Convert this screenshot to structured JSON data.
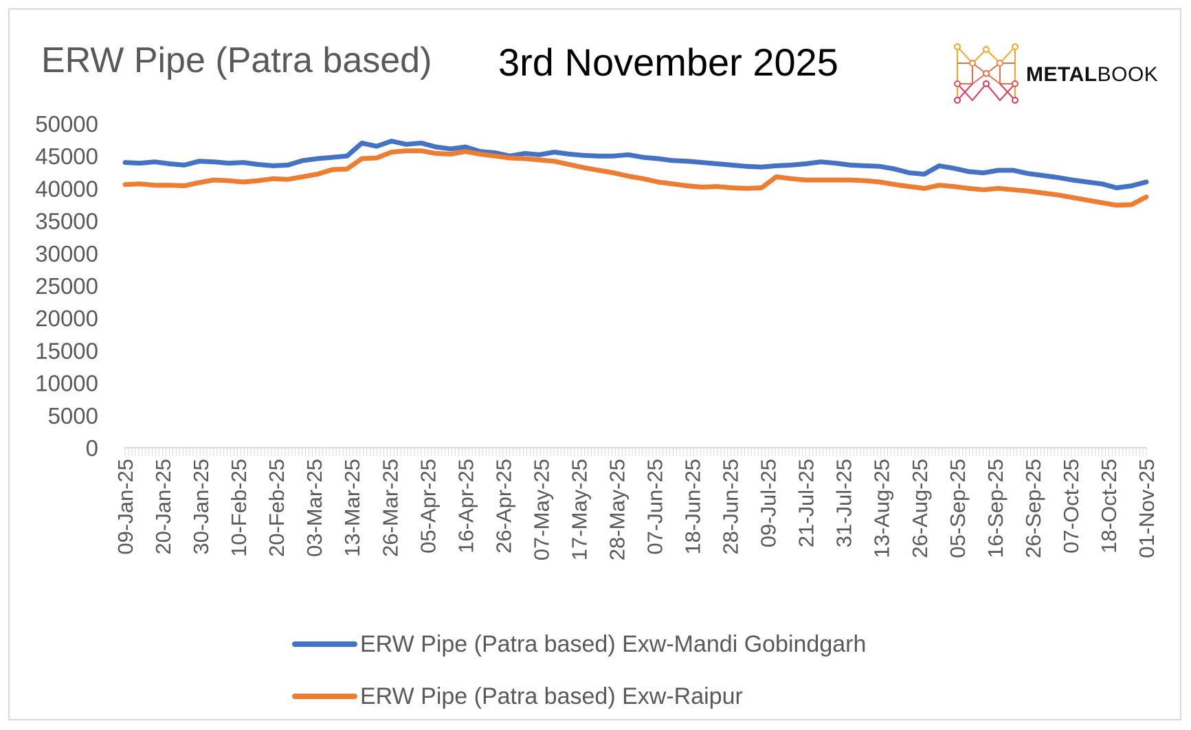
{
  "header": {
    "title": "ERW Pipe (Patra based)",
    "date": "3rd November 2025"
  },
  "logo": {
    "text_bold": "METAL",
    "text_regular": "BOOK",
    "icon": "network-m-icon",
    "colors": [
      "#f5a623",
      "#ec6b4a",
      "#e0345a"
    ]
  },
  "chart_data": {
    "type": "line",
    "ylim": [
      0,
      50000
    ],
    "yticks": [
      0,
      5000,
      10000,
      15000,
      20000,
      25000,
      30000,
      35000,
      40000,
      45000,
      50000
    ],
    "x_tick_labels": [
      "09-Jan-25",
      "20-Jan-25",
      "30-Jan-25",
      "10-Feb-25",
      "20-Feb-25",
      "03-Mar-25",
      "13-Mar-25",
      "26-Mar-25",
      "05-Apr-25",
      "16-Apr-25",
      "26-Apr-25",
      "07-May-25",
      "17-May-25",
      "28-May-25",
      "07-Jun-25",
      "18-Jun-25",
      "28-Jun-25",
      "09-Jul-25",
      "21-Jul-25",
      "31-Jul-25",
      "13-Aug-25",
      "26-Aug-25",
      "05-Sep-25",
      "16-Sep-25",
      "26-Sep-25",
      "07-Oct-25",
      "18-Oct-25",
      "01-Nov-25"
    ],
    "grid": false,
    "legend_position": "bottom",
    "series": [
      {
        "name": "ERW Pipe (Patra based) Exw-Mandi Gobindgarh",
        "color": "#4472c4",
        "values": [
          44000,
          43900,
          44100,
          43800,
          43600,
          44200,
          44100,
          43900,
          44000,
          43700,
          43500,
          43600,
          44300,
          44600,
          44800,
          45000,
          47000,
          46500,
          47300,
          46800,
          47000,
          46400,
          46100,
          46400,
          45700,
          45500,
          45000,
          45400,
          45200,
          45600,
          45300,
          45100,
          45000,
          45000,
          45200,
          44800,
          44600,
          44300,
          44200,
          44000,
          43800,
          43600,
          43400,
          43300,
          43500,
          43600,
          43800,
          44100,
          43900,
          43600,
          43500,
          43400,
          43000,
          42400,
          42200,
          43500,
          43100,
          42600,
          42400,
          42800,
          42800,
          42300,
          42000,
          41700,
          41300,
          41000,
          40700,
          40100,
          40400,
          41000
        ]
      },
      {
        "name": "ERW Pipe (Patra based) Exw-Raipur",
        "color": "#ed7d31",
        "values": [
          40600,
          40700,
          40500,
          40500,
          40400,
          40900,
          41300,
          41200,
          41000,
          41200,
          41500,
          41400,
          41800,
          42200,
          42900,
          43000,
          44600,
          44700,
          45600,
          45800,
          45800,
          45400,
          45300,
          45700,
          45300,
          45000,
          44700,
          44600,
          44400,
          44200,
          43700,
          43200,
          42800,
          42400,
          41900,
          41500,
          41000,
          40700,
          40400,
          40200,
          40300,
          40100,
          40000,
          40100,
          41800,
          41500,
          41300,
          41300,
          41300,
          41300,
          41200,
          41000,
          40600,
          40300,
          40000,
          40500,
          40300,
          40000,
          39800,
          40000,
          39800,
          39600,
          39300,
          39000,
          38600,
          38200,
          37800,
          37400,
          37500,
          38700
        ]
      }
    ]
  }
}
